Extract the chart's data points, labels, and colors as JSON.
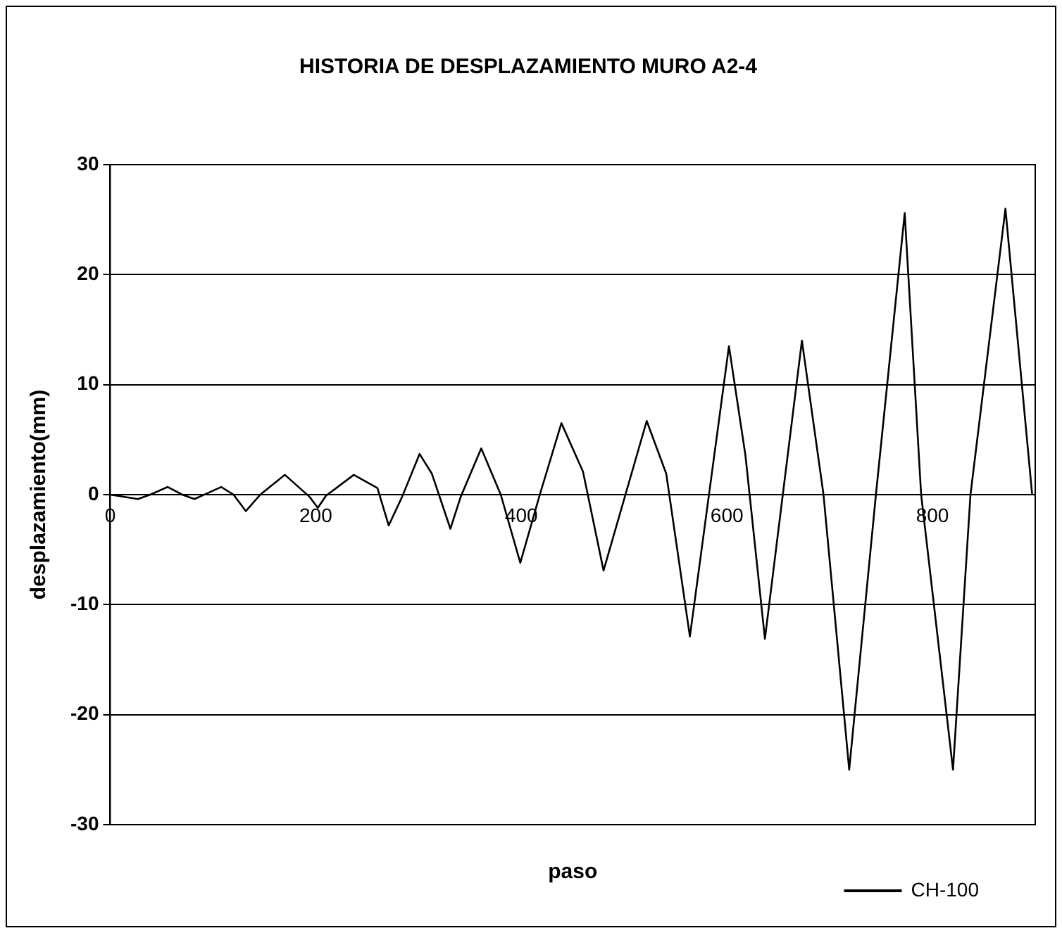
{
  "chart_data": {
    "type": "line",
    "title": "HISTORIA DE DESPLAZAMIENTO MURO A2-4",
    "xlabel": "paso",
    "ylabel": "desplazamiento(mm)",
    "x": [
      0,
      27,
      39,
      56,
      70,
      82,
      94,
      108,
      120,
      132,
      146,
      170,
      194,
      202,
      210,
      237,
      260,
      271,
      284,
      301,
      313,
      331,
      341,
      361,
      380,
      399,
      418,
      439,
      460,
      480,
      522,
      541,
      564,
      602,
      618,
      637,
      673,
      694,
      719,
      745,
      773,
      789,
      820,
      837,
      871,
      897
    ],
    "series": [
      {
        "name": "CH-100",
        "color": "#000000",
        "values": [
          0,
          -0.4,
          0,
          0.7,
          0,
          -0.4,
          0.1,
          0.7,
          0,
          -1.5,
          0,
          1.8,
          -0.2,
          -1.2,
          -0.1,
          1.8,
          0.6,
          -2.8,
          -0.2,
          3.7,
          1.9,
          -3.1,
          -0.2,
          4.2,
          0,
          -6.2,
          0,
          6.5,
          2.1,
          -6.9,
          6.7,
          1.9,
          -12.9,
          13.5,
          3.6,
          -13.1,
          14,
          0,
          -25,
          0,
          25.6,
          0,
          -25,
          0,
          26,
          0
        ]
      }
    ],
    "xlim": [
      0,
      900
    ],
    "xticks": [
      0,
      200,
      400,
      600,
      800
    ],
    "ylim": [
      -30,
      30
    ],
    "yticks": [
      -30,
      -20,
      -10,
      0,
      10,
      20,
      30
    ],
    "grid": "y",
    "legend": "bottom right",
    "marker": "none",
    "line_style": "solid"
  }
}
